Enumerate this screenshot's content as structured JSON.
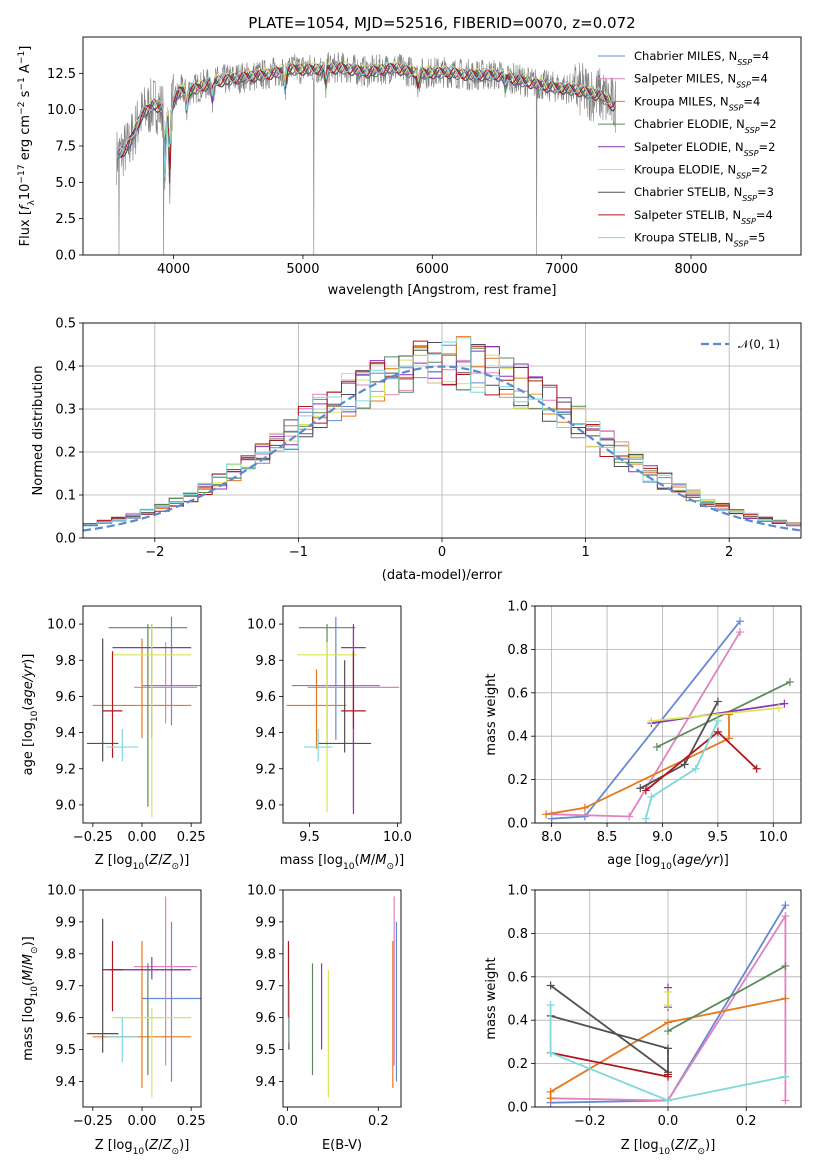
{
  "figure": {
    "title": "PLATE=1054, MJD=52516, FIBERID=0070, z=0.072"
  },
  "colors": {
    "Chabrier MILES": "#6689d4",
    "Salpeter MILES": "#e083c0",
    "Kroupa MILES": "#e6781e",
    "Chabrier ELODIE": "#5a8a5a",
    "Salpeter ELODIE": "#8a35b8",
    "Kroupa ELODIE": "#d8e65a",
    "Chabrier STELIB": "#505050",
    "Salpeter STELIB": "#b0171e",
    "Kroupa STELIB": "#7fd8dc",
    "data": "#808080",
    "normal": "#5a8ad0"
  },
  "chart_data": [
    {
      "id": "spectrum",
      "type": "line",
      "title": "PLATE=1054, MJD=52516, FIBERID=0070, z=0.072",
      "xlabel": "wavelength [Angstrom, rest frame]",
      "ylabel": "Flux [f_λ 10^-17 erg cm^-2 s^-1 A^-1]",
      "xlim": [
        3300,
        8850
      ],
      "ylim": [
        0,
        15
      ],
      "xticks": [
        "4000",
        "5000",
        "6000",
        "7000",
        "8000"
      ],
      "yticks": [
        "0.0",
        "2.5",
        "5.0",
        "7.5",
        "10.0",
        "12.5"
      ],
      "continuum": {
        "x": [
          3560,
          3650,
          3750,
          3850,
          3950,
          4050,
          4150,
          4300,
          4500,
          4700,
          4900,
          5100,
          5300,
          5500,
          5700,
          5900,
          6100,
          6300,
          6500,
          6700,
          6900,
          7100,
          7300,
          7400
        ],
        "y": [
          6.8,
          7.5,
          9.6,
          10.4,
          9.8,
          11.3,
          11.4,
          11.9,
          12.2,
          12.4,
          12.8,
          12.8,
          12.9,
          12.6,
          12.9,
          12.5,
          12.6,
          12.4,
          12.4,
          12.0,
          11.6,
          11.4,
          11.0,
          10.3
        ]
      },
      "legend": [
        {
          "label": "Chabrier MILES",
          "nssp": "4"
        },
        {
          "label": "Salpeter MILES",
          "nssp": "4"
        },
        {
          "label": "Kroupa MILES",
          "nssp": "4"
        },
        {
          "label": "Chabrier ELODIE",
          "nssp": "2"
        },
        {
          "label": "Salpeter ELODIE",
          "nssp": "2"
        },
        {
          "label": "Kroupa ELODIE",
          "nssp": "2"
        },
        {
          "label": "Chabrier STELIB",
          "nssp": "3"
        },
        {
          "label": "Salpeter STELIB",
          "nssp": "4"
        },
        {
          "label": "Kroupa STELIB",
          "nssp": "5"
        }
      ],
      "legend_suffix_prefix": "N",
      "legend_suffix_sub": "SSP",
      "legend_loc": "upper right"
    },
    {
      "id": "residuals",
      "type": "line",
      "xlabel": "(data-model)/error",
      "ylabel": "Normed distribution",
      "xlim": [
        -2.5,
        2.5
      ],
      "ylim": [
        0,
        0.5
      ],
      "xticks": [
        "−2",
        "−1",
        "0",
        "1",
        "2"
      ],
      "yticks": [
        "0.0",
        "0.1",
        "0.2",
        "0.3",
        "0.4",
        "0.5"
      ],
      "grid": true,
      "legend": [
        {
          "label": "𝒩(0, 1)"
        }
      ],
      "legend_loc": "upper right",
      "step_histogram": {
        "bin_width": 0.1,
        "bin_start": -2.5,
        "distribution": "normal(0,1)"
      }
    },
    {
      "id": "age_vs_Z",
      "type": "scatter",
      "xlabel": "Z [log10(Z/Z⊙)]",
      "ylabel": "age  [log10(age/yr)]",
      "xlim": [
        -0.3,
        0.3
      ],
      "ylim": [
        8.9,
        10.1
      ],
      "xticks": [
        "−0.25",
        "0.00",
        "0.25"
      ],
      "yticks": [
        "9.0",
        "9.2",
        "9.4",
        "9.6",
        "9.8",
        "10.0"
      ],
      "points": [
        {
          "series": "Chabrier MILES",
          "x": 0.15,
          "y": 9.66,
          "xerr": 0.15,
          "yerr": [
            0.22,
            0.38
          ]
        },
        {
          "series": "Salpeter MILES",
          "x": 0.12,
          "y": 9.65,
          "xerr": 0.16,
          "yerr": [
            0.2,
            0.25
          ]
        },
        {
          "series": "Kroupa MILES",
          "x": 0.0,
          "y": 9.55,
          "xerr": 0.25,
          "yerr": [
            0.18,
            0.37
          ]
        },
        {
          "series": "Chabrier ELODIE",
          "x": 0.03,
          "y": 9.98,
          "xerr": 0.2,
          "yerr": [
            0.99,
            0.02
          ]
        },
        {
          "series": "Salpeter ELODIE",
          "x": 0.05,
          "y": 9.87,
          "xerr": 0.2,
          "yerr": [
            0.5,
            0.13
          ]
        },
        {
          "series": "Kroupa ELODIE",
          "x": 0.05,
          "y": 9.83,
          "xerr": 0.2,
          "yerr": [
            0.9,
            0.17
          ]
        },
        {
          "series": "Chabrier STELIB",
          "x": -0.2,
          "y": 9.34,
          "xerr": 0.08,
          "yerr": [
            0.1,
            0.58
          ]
        },
        {
          "series": "Salpeter STELIB",
          "x": -0.15,
          "y": 9.52,
          "xerr": 0.05,
          "yerr": [
            0.26,
            0.33
          ]
        },
        {
          "series": "Kroupa STELIB",
          "x": -0.1,
          "y": 9.32,
          "xerr": 0.08,
          "yerr": [
            0.08,
            0.1
          ]
        }
      ]
    },
    {
      "id": "age_vs_mass",
      "type": "scatter",
      "xlabel": "mass [log10(M/M⊙)]",
      "xlim": [
        9.35,
        10.02
      ],
      "ylim": [
        8.9,
        10.1
      ],
      "xticks": [
        "9.5",
        "10.0"
      ],
      "yticks": [
        "9.0",
        "9.2",
        "9.4",
        "9.6",
        "9.8",
        "10.0"
      ],
      "points": [
        {
          "series": "Chabrier MILES",
          "x": 9.65,
          "y": 9.66,
          "xerr": 0.25,
          "yerr": [
            0.3,
            0.38
          ]
        },
        {
          "series": "Salpeter MILES",
          "x": 9.75,
          "y": 9.65,
          "xerr": 0.26,
          "yerr": [
            0.66,
            0.34
          ]
        },
        {
          "series": "Kroupa MILES",
          "x": 9.54,
          "y": 9.55,
          "xerr": 0.17,
          "yerr": [
            0.24,
            0.2
          ]
        },
        {
          "series": "Chabrier ELODIE",
          "x": 9.6,
          "y": 9.98,
          "xerr": 0.16,
          "yerr": [
            0.65,
            0.02
          ]
        },
        {
          "series": "Salpeter ELODIE",
          "x": 9.75,
          "y": 9.87,
          "xerr": 0.07,
          "yerr": [
            0.92,
            0.13
          ]
        },
        {
          "series": "Kroupa ELODIE",
          "x": 9.6,
          "y": 9.83,
          "xerr": 0.17,
          "yerr": [
            0.87,
            0.07
          ]
        },
        {
          "series": "Chabrier STELIB",
          "x": 9.7,
          "y": 9.34,
          "xerr": 0.15,
          "yerr": [
            0.05,
            0.46
          ]
        },
        {
          "series": "Salpeter STELIB",
          "x": 9.75,
          "y": 9.52,
          "xerr": 0.07,
          "yerr": [
            0.1,
            0.33
          ]
        },
        {
          "series": "Kroupa STELIB",
          "x": 9.55,
          "y": 9.32,
          "xerr": 0.08,
          "yerr": [
            0.08,
            0.1
          ]
        }
      ]
    },
    {
      "id": "mass_weight_vs_age",
      "type": "line",
      "xlabel": "age  [log10(age/yr)]",
      "ylabel": "mass weight",
      "xlim": [
        7.85,
        10.25
      ],
      "ylim": [
        0,
        1
      ],
      "xticks": [
        "8.0",
        "8.5",
        "9.0",
        "9.5",
        "10.0"
      ],
      "yticks": [
        "0.0",
        "0.2",
        "0.4",
        "0.6",
        "0.8",
        "1.0"
      ],
      "grid": true,
      "series": [
        {
          "name": "Chabrier MILES",
          "x": [
            8.0,
            8.3,
            9.7
          ],
          "y": [
            0.02,
            0.03,
            0.93
          ]
        },
        {
          "name": "Salpeter MILES",
          "x": [
            8.0,
            8.7,
            9.7
          ],
          "y": [
            0.04,
            0.03,
            0.88
          ]
        },
        {
          "name": "Kroupa MILES",
          "x": [
            7.95,
            8.3,
            9.6,
            9.6
          ],
          "y": [
            0.04,
            0.07,
            0.39,
            0.5
          ]
        },
        {
          "name": "Chabrier ELODIE",
          "x": [
            8.95,
            10.15
          ],
          "y": [
            0.35,
            0.65
          ]
        },
        {
          "name": "Salpeter ELODIE",
          "x": [
            8.9,
            10.1
          ],
          "y": [
            0.46,
            0.55
          ]
        },
        {
          "name": "Kroupa ELODIE",
          "x": [
            8.9,
            10.05
          ],
          "y": [
            0.47,
            0.53
          ]
        },
        {
          "name": "Chabrier STELIB",
          "x": [
            8.8,
            9.2,
            9.5
          ],
          "y": [
            0.16,
            0.27,
            0.56
          ]
        },
        {
          "name": "Salpeter STELIB",
          "x": [
            8.85,
            9.5,
            9.85
          ],
          "y": [
            0.15,
            0.42,
            0.25
          ]
        },
        {
          "name": "Kroupa STELIB",
          "x": [
            8.85,
            8.9,
            9.3,
            9.5
          ],
          "y": [
            0.02,
            0.12,
            0.25,
            0.47
          ]
        }
      ]
    },
    {
      "id": "mass_vs_Z",
      "type": "scatter",
      "xlabel": "Z [log10(Z/Z⊙)]",
      "ylabel": "mass [log10(M/M⊙)]",
      "xlim": [
        -0.3,
        0.3
      ],
      "ylim": [
        9.32,
        10.0
      ],
      "xticks": [
        "−0.25",
        "0.00",
        "0.25"
      ],
      "yticks": [
        "9.4",
        "9.5",
        "9.6",
        "9.7",
        "9.8",
        "9.9",
        "10.0"
      ],
      "points": [
        {
          "series": "Chabrier MILES",
          "x": 0.15,
          "y": 9.66,
          "xerr": 0.15,
          "yerr": [
            0.26,
            0.24
          ]
        },
        {
          "series": "Salpeter MILES",
          "x": 0.12,
          "y": 9.76,
          "xerr": 0.16,
          "yerr": [
            0.31,
            0.22
          ]
        },
        {
          "series": "Kroupa MILES",
          "x": 0.0,
          "y": 9.54,
          "xerr": 0.25,
          "yerr": [
            0.16,
            0.3
          ]
        },
        {
          "series": "Chabrier ELODIE",
          "x": 0.03,
          "y": 9.75,
          "xerr": 0.2,
          "yerr": [
            0.33,
            0.02
          ]
        },
        {
          "series": "Salpeter ELODIE",
          "x": 0.05,
          "y": 9.75,
          "xerr": 0.2,
          "yerr": [
            0.03,
            0.04
          ]
        },
        {
          "series": "Kroupa ELODIE",
          "x": 0.05,
          "y": 9.6,
          "xerr": 0.2,
          "yerr": [
            0.25,
            0.03
          ]
        },
        {
          "series": "Chabrier STELIB",
          "x": -0.2,
          "y": 9.55,
          "xerr": 0.08,
          "yerr": [
            0.06,
            0.36
          ]
        },
        {
          "series": "Salpeter STELIB",
          "x": -0.15,
          "y": 9.75,
          "xerr": 0.05,
          "yerr": [
            0.13,
            0.09
          ]
        },
        {
          "series": "Kroupa STELIB",
          "x": -0.1,
          "y": 9.54,
          "xerr": 0.08,
          "yerr": [
            0.08,
            0.06
          ]
        }
      ]
    },
    {
      "id": "mass_vs_ebv",
      "type": "scatter",
      "xlabel": "E(B-V)",
      "xlim": [
        -0.01,
        0.25
      ],
      "ylim": [
        9.32,
        10.0
      ],
      "xticks": [
        "0.0",
        "0.2"
      ],
      "yticks": [
        "9.4",
        "9.5",
        "9.6",
        "9.7",
        "9.8",
        "9.9",
        "10.0"
      ],
      "points": [
        {
          "series": "Chabrier MILES",
          "x": 0.24,
          "y": 9.66,
          "yerr": [
            0.26,
            0.24
          ]
        },
        {
          "series": "Salpeter MILES",
          "x": 0.235,
          "y": 9.76,
          "yerr": [
            0.31,
            0.22
          ]
        },
        {
          "series": "Kroupa MILES",
          "x": 0.232,
          "y": 9.54,
          "yerr": [
            0.16,
            0.3
          ]
        },
        {
          "series": "Chabrier ELODIE",
          "x": 0.055,
          "y": 9.6,
          "yerr": [
            0.18,
            0.17
          ]
        },
        {
          "series": "Salpeter ELODIE",
          "x": 0.075,
          "y": 9.6,
          "yerr": [
            0.1,
            0.17
          ]
        },
        {
          "series": "Kroupa ELODIE",
          "x": 0.09,
          "y": 9.55,
          "yerr": [
            0.2,
            0.2
          ]
        },
        {
          "series": "Chabrier STELIB",
          "x": 0.003,
          "y": 9.6,
          "yerr": [
            0.1,
            0.1
          ]
        },
        {
          "series": "Salpeter STELIB",
          "x": 0.002,
          "y": 9.68,
          "yerr": [
            0.08,
            0.16
          ]
        },
        {
          "series": "Kroupa STELIB",
          "x": 0.004,
          "y": 9.62,
          "yerr": [
            0.1,
            0.1
          ]
        }
      ]
    },
    {
      "id": "mass_weight_vs_Z",
      "type": "line",
      "xlabel": "Z [log10(Z/Z⊙)]",
      "ylabel": "mass weight",
      "xlim": [
        -0.34,
        0.34
      ],
      "ylim": [
        0,
        1
      ],
      "xticks": [
        "−0.2",
        "0.0",
        "0.2"
      ],
      "yticks": [
        "0.0",
        "0.2",
        "0.4",
        "0.6",
        "0.8",
        "1.0"
      ],
      "grid": true,
      "series": [
        {
          "name": "Chabrier MILES",
          "x": [
            -0.3,
            0.0,
            0.3
          ],
          "y": [
            0.02,
            0.03,
            0.93
          ]
        },
        {
          "name": "Salpeter MILES",
          "x": [
            -0.3,
            0.0,
            0.3,
            0.3
          ],
          "y": [
            0.04,
            0.03,
            0.88,
            0.03
          ]
        },
        {
          "name": "Kroupa MILES",
          "x": [
            -0.3,
            -0.3,
            0.0,
            0.3
          ],
          "y": [
            0.04,
            0.07,
            0.39,
            0.5
          ]
        },
        {
          "name": "Chabrier ELODIE",
          "x": [
            0.0,
            0.3
          ],
          "y": [
            0.35,
            0.65
          ]
        },
        {
          "name": "Salpeter ELODIE",
          "x": [
            0.0,
            0.0
          ],
          "y": [
            0.46,
            0.55
          ]
        },
        {
          "name": "Kroupa ELODIE",
          "x": [
            0.0,
            0.0
          ],
          "y": [
            0.47,
            0.53
          ]
        },
        {
          "name": "Chabrier STELIB",
          "x": [
            -0.3,
            0.0,
            0.0,
            -0.3
          ],
          "y": [
            0.56,
            0.16,
            0.27,
            0.42
          ]
        },
        {
          "name": "Salpeter STELIB",
          "x": [
            -0.3,
            0.0,
            0.0
          ],
          "y": [
            0.25,
            0.14,
            0.15
          ]
        },
        {
          "name": "Kroupa STELIB",
          "x": [
            -0.3,
            -0.3,
            0.0,
            0.3
          ],
          "y": [
            0.47,
            0.25,
            0.03,
            0.14
          ]
        }
      ]
    }
  ]
}
